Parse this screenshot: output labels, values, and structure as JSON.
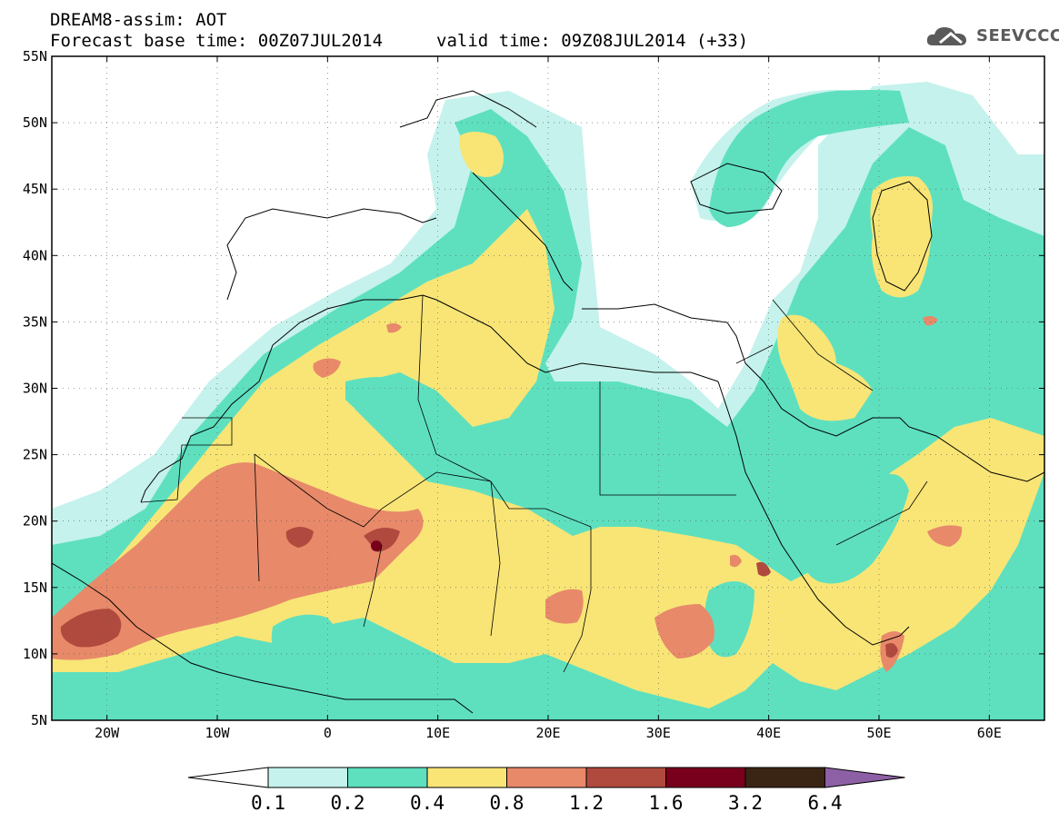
{
  "header": {
    "line1": "DREAM8-assim: AOT",
    "line2": "Forecast base time: 00Z07JUL2014",
    "valid": "valid time: 09Z08JUL2014 (+33)"
  },
  "logo": {
    "text": "SEEVCCC",
    "icon": "cloud-logo-icon"
  },
  "map": {
    "lat_labels": [
      "55N",
      "50N",
      "45N",
      "40N",
      "35N",
      "30N",
      "25N",
      "20N",
      "15N",
      "10N",
      "5N"
    ],
    "lon_labels": [
      "20W",
      "10W",
      "0",
      "10E",
      "20E",
      "30E",
      "40E",
      "50E",
      "60E"
    ],
    "lon_range": [
      -25,
      65
    ],
    "lat_range": [
      5,
      55
    ]
  },
  "colorbar": {
    "labels": [
      "0.1",
      "0.2",
      "0.4",
      "0.8",
      "1.2",
      "1.6",
      "3.2",
      "6.4"
    ],
    "colors": [
      "#ffffff",
      "#c5f2ec",
      "#5ee0bf",
      "#f8e576",
      "#e8896a",
      "#b04a3e",
      "#78001c",
      "#3a2414",
      "#8d60a5"
    ]
  },
  "fill_colors": {
    "lightcyan": "#c5f2ec",
    "green": "#5ee0bf",
    "yellow": "#f8e576",
    "orange": "#e8896a",
    "brown": "#b04a3e",
    "maroon": "#78001c",
    "coast": "#000000"
  }
}
